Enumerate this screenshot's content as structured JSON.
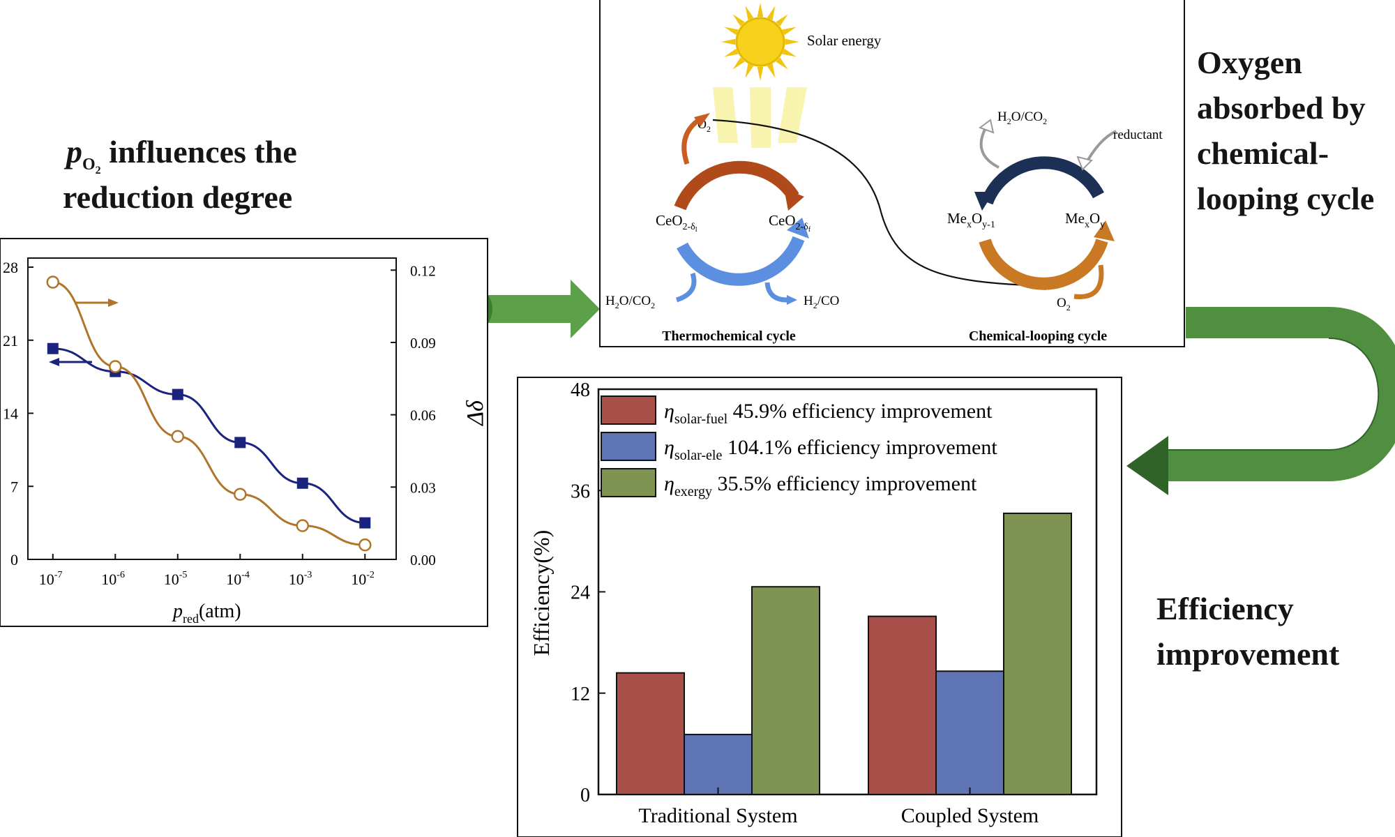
{
  "headings": {
    "left_line1_sym": "p",
    "left_line1_sub": "O",
    "left_line1_sub2": "2",
    "left_line1_rest": " influences the",
    "left_line2": "reduction degree",
    "right_top": [
      "Oxygen",
      "absorbed by",
      "chemical-",
      "looping cycle"
    ],
    "right_bottom": [
      "Efficiency",
      "improvement"
    ]
  },
  "schematic": {
    "sun_label": "Solar energy",
    "o2_label": "O",
    "o2_sub": "2",
    "thermo": {
      "left_species": "CeO",
      "left_sub": "2-δ",
      "left_sub2": "l",
      "right_species": "CeO",
      "right_sub": "2-δ",
      "right_sub2": "f",
      "input_label": "H",
      "input_rest": "O/CO",
      "input_sub": "2",
      "output_label": "H",
      "output_rest": "/CO",
      "output_sub": "2",
      "caption": "Thermochemical cycle"
    },
    "looping": {
      "top_in": "H",
      "top_in_rest": "O/CO",
      "top_in_sub": "2",
      "reductant": "reductant",
      "left_species": "Me",
      "left_sub_x": "x",
      "left_mid": "O",
      "left_sub_y": "y-1",
      "right_species": "Me",
      "right_sub_x": "x",
      "right_mid": "O",
      "right_sub_y": "y",
      "o2_label": "O",
      "o2_sub": "2",
      "caption": "Chemical-looping cycle"
    }
  },
  "line_chart": {
    "type": "line",
    "x_ticks_base": "10",
    "x_ticks_exp": [
      "-7",
      "-6",
      "-5",
      "-4",
      "-3",
      "-2"
    ],
    "x": [
      -7,
      -6,
      -5,
      -4,
      -3,
      -2
    ],
    "xlabel_sym": "p",
    "xlabel_sub": "red",
    "xlabel_rest": "(atm)",
    "y_left_ticks": [
      "0",
      "7",
      "14",
      "21",
      "28"
    ],
    "y_left_lim": [
      0,
      28
    ],
    "y_right_ticks": [
      "0.00",
      "0.03",
      "0.06",
      "0.09",
      "0.12"
    ],
    "y_right_lim": [
      0,
      0.125
    ],
    "y_right_label": "Δδ",
    "series": [
      {
        "axis": "left",
        "color": "#1a237e",
        "marker": "square",
        "values": [
          20.2,
          18.0,
          15.8,
          11.2,
          7.3,
          3.5
        ]
      },
      {
        "axis": "right",
        "color": "#b0752a",
        "marker": "circle",
        "values": [
          0.115,
          0.08,
          0.051,
          0.027,
          0.014,
          0.006
        ]
      }
    ]
  },
  "chart_data": {
    "type": "bar",
    "categories": [
      "Traditional System",
      "Coupled System"
    ],
    "ylabel": "Efficiency(%)",
    "ylim": [
      0,
      48
    ],
    "yticks": [
      "0",
      "12",
      "24",
      "36",
      "48"
    ],
    "series": [
      {
        "name": "solar-fuel",
        "color": "#a9504b",
        "values": [
          14.4,
          21.1
        ],
        "legend_sym": "η",
        "legend_sub": "solar-fuel",
        "legend_text": "45.9% efficiency improvement"
      },
      {
        "name": "solar-ele",
        "color": "#5f74b5",
        "values": [
          7.1,
          14.6
        ],
        "legend_sym": "η",
        "legend_sub": "solar-ele",
        "legend_text": "104.1% efficiency improvement"
      },
      {
        "name": "exergy",
        "color": "#7f9452",
        "values": [
          24.6,
          33.3
        ],
        "legend_sym": "η",
        "legend_sub": "exergy",
        "legend_text": "35.5% efficiency improvement"
      }
    ]
  }
}
